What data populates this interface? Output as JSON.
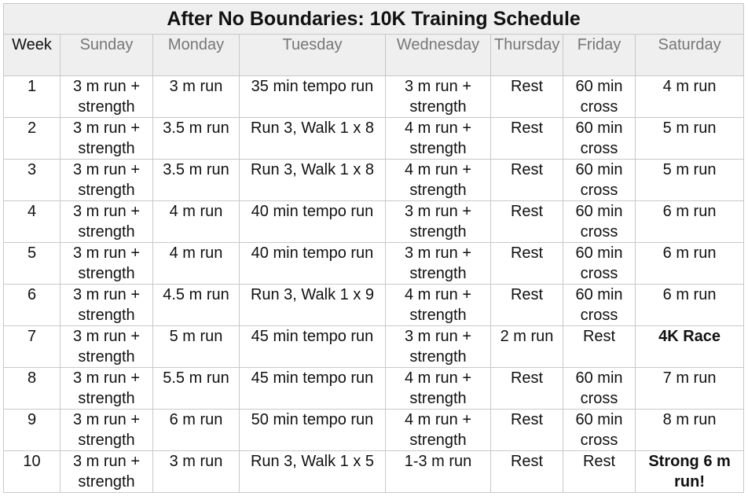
{
  "title": "After No Boundaries: 10K Training Schedule",
  "columns": [
    "Week",
    "Sunday",
    "Monday",
    "Tuesday",
    "Wednesday",
    "Thursday",
    "Friday",
    "Saturday"
  ],
  "rows": [
    [
      "1",
      "3 m run + strength",
      "3 m run",
      "35 min tempo run",
      "3 m run + strength",
      "Rest",
      "60 min cross",
      "4 m run"
    ],
    [
      "2",
      "3 m run + strength",
      "3.5 m run",
      "Run 3, Walk 1 x 8",
      "4 m run + strength",
      "Rest",
      "60 min cross",
      "5 m run"
    ],
    [
      "3",
      "3 m run + strength",
      "3.5 m run",
      "Run 3, Walk 1 x 8",
      "4 m run + strength",
      "Rest",
      "60 min cross",
      "5 m run"
    ],
    [
      "4",
      "3 m run + strength",
      "4 m run",
      "40 min tempo run",
      "3 m run + strength",
      "Rest",
      "60 min cross",
      "6 m run"
    ],
    [
      "5",
      "3 m run + strength",
      "4 m run",
      "40 min tempo run",
      "3 m run + strength",
      "Rest",
      "60 min cross",
      "6 m run"
    ],
    [
      "6",
      "3 m run + strength",
      "4.5 m run",
      "Run 3, Walk 1 x 9",
      "4 m run + strength",
      "Rest",
      "60 min cross",
      "6 m run"
    ],
    [
      "7",
      "3 m run + strength",
      "5 m run",
      "45 min tempo run",
      "3 m run + strength",
      "2 m run",
      "Rest",
      "4K Race"
    ],
    [
      "8",
      "3 m run + strength",
      "5.5 m run",
      "45 min tempo run",
      "4 m run + strength",
      "Rest",
      "60 min cross",
      "7 m run"
    ],
    [
      "9",
      "3 m run + strength",
      "6 m run",
      "50 min tempo run",
      "4 m run + strength",
      "Rest",
      "60 min cross",
      "8 m run"
    ],
    [
      "10",
      "3 m run + strength",
      "3 m run",
      "Run 3, Walk 1 x 5",
      "1-3 m run",
      "Rest",
      "Rest",
      "Strong 6 m run!"
    ]
  ],
  "bold_cells": [
    "6.7",
    "9.7"
  ]
}
